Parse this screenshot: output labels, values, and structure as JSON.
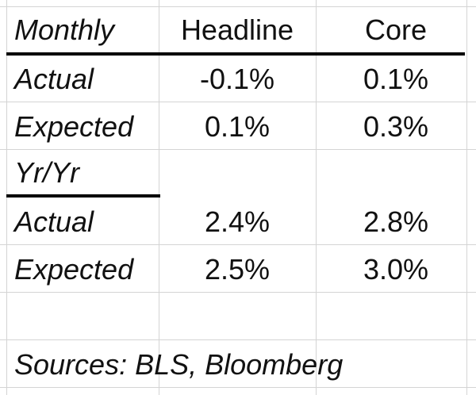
{
  "table": {
    "header": {
      "label": "Monthly",
      "headline": "Headline",
      "core": "Core"
    },
    "monthly": [
      {
        "label": "Actual",
        "headline": "-0.1%",
        "core": "0.1%"
      },
      {
        "label": "Expected",
        "headline": "0.1%",
        "core": "0.3%"
      }
    ],
    "yearly_label": "Yr/Yr",
    "yearly": [
      {
        "label": "Actual",
        "headline": "2.4%",
        "core": "2.8%"
      },
      {
        "label": "Expected",
        "headline": "2.5%",
        "core": "3.0%"
      }
    ],
    "source": "Sources: BLS, Bloomberg"
  },
  "colors": {
    "gridline": "#d4d4d4",
    "border": "#000000",
    "text": "#111111"
  }
}
